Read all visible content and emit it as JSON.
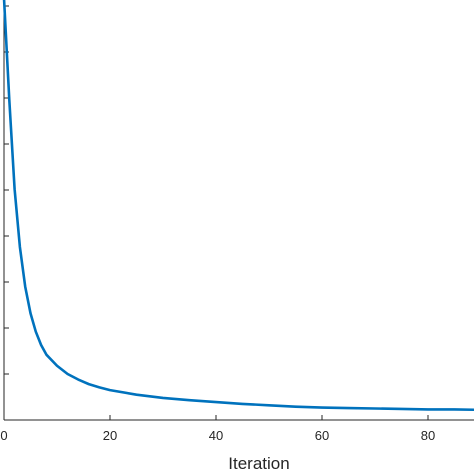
{
  "chart_data": {
    "type": "line",
    "title": "",
    "xlabel": "Iteration",
    "ylabel": "",
    "xlim": [
      0,
      90
    ],
    "ylim": [
      0,
      100
    ],
    "x_ticks": [
      0,
      20,
      40,
      60,
      80
    ],
    "x_tick_labels": [
      "0",
      "20",
      "40",
      "60",
      "80"
    ],
    "y_ticks": [
      0,
      10,
      20,
      30,
      40,
      50,
      60,
      70,
      80,
      90
    ],
    "grid": false,
    "legend": "none",
    "colors": {
      "line": "#0072BD",
      "axis": "#262626"
    },
    "series": [
      {
        "x": [
          0,
          1,
          2,
          3,
          4,
          5,
          6,
          7,
          8,
          10,
          12,
          14,
          16,
          18,
          20,
          25,
          30,
          35,
          40,
          45,
          50,
          55,
          60,
          65,
          70,
          75,
          80,
          85,
          90
        ],
        "values": [
          91.7,
          69.6,
          50.2,
          37.6,
          29.0,
          23.2,
          19.2,
          16.3,
          14.2,
          11.8,
          10.0,
          8.8,
          7.8,
          7.1,
          6.5,
          5.5,
          4.8,
          4.3,
          3.9,
          3.5,
          3.2,
          2.9,
          2.7,
          2.6,
          2.5,
          2.4,
          2.3,
          2.3,
          2.2
        ]
      }
    ]
  }
}
